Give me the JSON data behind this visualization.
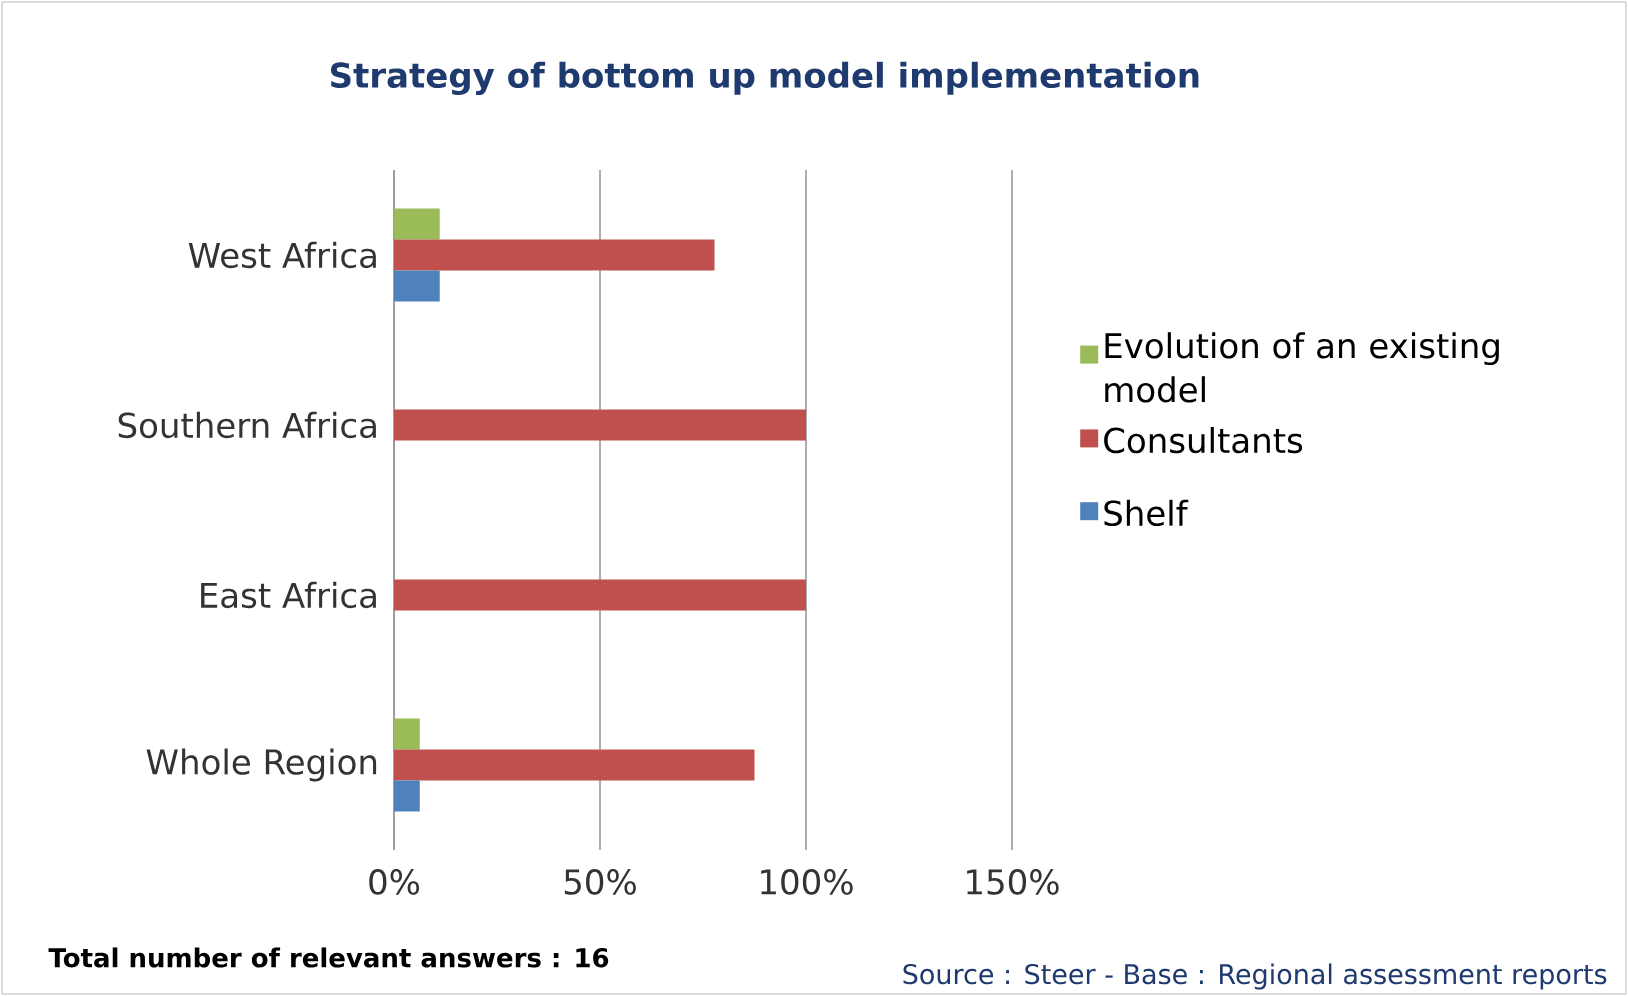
{
  "chart_data": {
    "type": "bar",
    "orientation": "horizontal",
    "title": "Strategy of bottom up model implementation",
    "categories": [
      "West Africa",
      "Southern Africa",
      "East Africa",
      "Whole Region"
    ],
    "series": [
      {
        "name": "Evolution of an existing model",
        "color": "#9bbb59",
        "values": [
          11.1,
          0,
          0,
          6.25
        ]
      },
      {
        "name": "Consultants",
        "color": "#c0504d",
        "values": [
          77.8,
          100,
          100,
          87.5
        ]
      },
      {
        "name": "Shelf",
        "color": "#4f81bd",
        "values": [
          11.1,
          0,
          0,
          6.25
        ]
      }
    ],
    "xlim": [
      0,
      150
    ],
    "xticks": [
      {
        "value": 0,
        "label": "0%"
      },
      {
        "value": 50,
        "label": "50%"
      },
      {
        "value": 100,
        "label": "100%"
      },
      {
        "value": 150,
        "label": "150%"
      }
    ],
    "grid": "x",
    "legend": "right",
    "annotations": [
      "**Total number of relevant answers : 16**",
      "Source : Steer - Base : Regional assessment reports"
    ]
  }
}
